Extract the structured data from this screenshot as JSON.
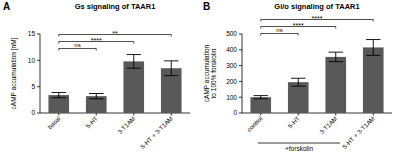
{
  "chart_data": [
    {
      "type": "bar",
      "panel_label": "A",
      "title": "Gs signaling of TAAR1",
      "y_label": "cAMP accumulation [nM]",
      "categories": [
        "basal",
        "5-HT",
        "3-T1AM",
        "5-HT + 3-T1AM"
      ],
      "values": [
        3.4,
        3.2,
        9.8,
        8.5
      ],
      "errors": [
        0.5,
        0.5,
        1.3,
        1.4
      ],
      "color": "#595959",
      "ylim": [
        0,
        15
      ],
      "yticks": [
        0,
        5,
        10,
        15
      ],
      "grid": false,
      "significance": [
        {
          "between": [
            "basal",
            "5-HT"
          ],
          "label": "ns"
        },
        {
          "between": [
            "basal",
            "3-T1AM"
          ],
          "label": "****"
        },
        {
          "between": [
            "basal",
            "5-HT + 3-T1AM"
          ],
          "label": "**"
        }
      ]
    },
    {
      "type": "bar",
      "panel_label": "B",
      "title": "Gi/o signaling of TAAR1",
      "y_label": [
        "cAMP accumulation",
        "to 100% forskolin"
      ],
      "x_label": "+forskolin",
      "categories": [
        "control",
        "5-HT",
        "3-T1AM",
        "5-HT + 3-T1AM"
      ],
      "values": [
        100,
        195,
        355,
        415
      ],
      "errors": [
        10,
        25,
        30,
        50
      ],
      "color": "#595959",
      "ylim": [
        0,
        500
      ],
      "yticks": [
        0,
        100,
        200,
        300,
        400,
        500
      ],
      "grid": false,
      "significance": [
        {
          "between": [
            "control",
            "5-HT"
          ],
          "label": "ns"
        },
        {
          "between": [
            "control",
            "3-T1AM"
          ],
          "label": "****"
        },
        {
          "between": [
            "control",
            "5-HT + 3-T1AM"
          ],
          "label": "****"
        }
      ]
    }
  ]
}
